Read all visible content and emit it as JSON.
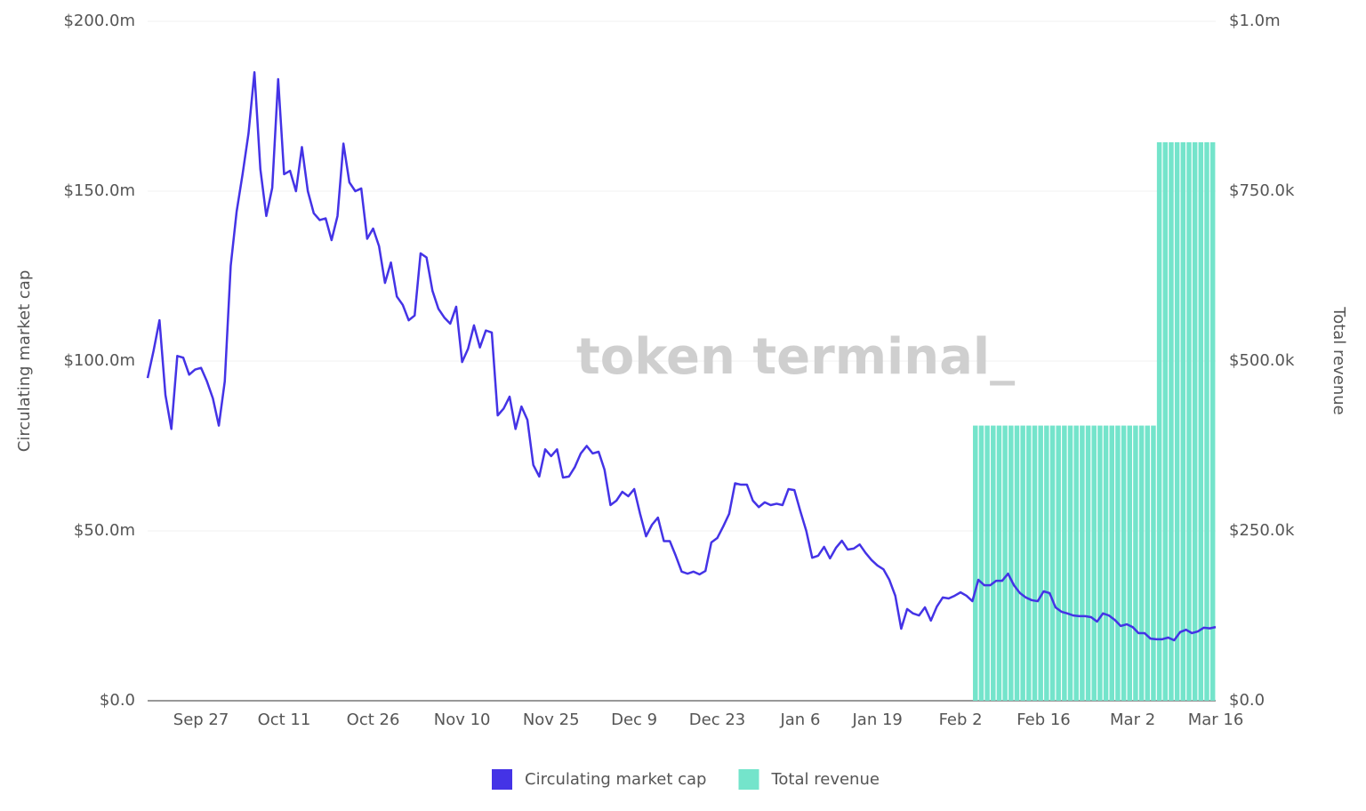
{
  "chart_data": {
    "type": "line-bar",
    "watermark": "token terminal_",
    "ylabel": "Circulating market cap",
    "y2label": "Total revenue",
    "categories": [
      null,
      null,
      null,
      null,
      null,
      null,
      null,
      null,
      null,
      "Sep 27",
      null,
      null,
      null,
      null,
      null,
      null,
      null,
      null,
      null,
      null,
      null,
      null,
      null,
      "Oct 11",
      null,
      null,
      null,
      null,
      null,
      null,
      null,
      null,
      null,
      null,
      null,
      null,
      null,
      null,
      "Oct 26",
      null,
      null,
      null,
      null,
      null,
      null,
      null,
      null,
      null,
      null,
      null,
      null,
      null,
      null,
      "Nov 10",
      null,
      null,
      null,
      null,
      null,
      null,
      null,
      null,
      null,
      null,
      null,
      null,
      null,
      null,
      "Nov 25",
      null,
      null,
      null,
      null,
      null,
      null,
      null,
      null,
      null,
      null,
      null,
      null,
      null,
      "Dec 9",
      null,
      null,
      null,
      null,
      null,
      null,
      null,
      null,
      null,
      null,
      null,
      null,
      null,
      "Dec 23",
      null,
      null,
      null,
      null,
      null,
      null,
      null,
      null,
      null,
      null,
      null,
      null,
      null,
      "Jan 6",
      null,
      null,
      null,
      null,
      null,
      null,
      null,
      null,
      null,
      null,
      null,
      null,
      "Jan 19",
      null,
      null,
      null,
      null,
      null,
      null,
      null,
      null,
      null,
      null,
      null,
      null,
      null,
      "Feb 2",
      null,
      null,
      null,
      null,
      null,
      null,
      null,
      null,
      null,
      null,
      null,
      null,
      null,
      "Feb 16",
      null,
      null,
      null,
      null,
      null,
      null,
      null,
      null,
      null,
      null,
      null,
      null,
      null,
      null,
      "Mar 2",
      null,
      null,
      null,
      null,
      null,
      null,
      null,
      null,
      null,
      null,
      null,
      null,
      null,
      "Mar 16"
    ],
    "series": [
      {
        "name": "Circulating market cap",
        "type": "line",
        "color": "#4433e6",
        "values": [
          95,
          103,
          112,
          90,
          80,
          101.5,
          101,
          96,
          97.5,
          98,
          94,
          89,
          81,
          94,
          128,
          144,
          155,
          167,
          185,
          156.5,
          142.7,
          151,
          183,
          155,
          156,
          150,
          163,
          150,
          143.5,
          141.5,
          142,
          135.6,
          142.7,
          164,
          152.6,
          150,
          150.8,
          136,
          139,
          133.8,
          123,
          129,
          119,
          116.5,
          112,
          113.4,
          131.7,
          130.5,
          120.7,
          115.4,
          112.8,
          111,
          116,
          99.7,
          103.6,
          110.5,
          104,
          109,
          108.4,
          84,
          86,
          89.5,
          80,
          86.6,
          82.7,
          69.4,
          66,
          74,
          72,
          74,
          65.7,
          66,
          68.8,
          72.8,
          75,
          72.8,
          73.3,
          68,
          57.6,
          58.9,
          61.5,
          60.2,
          62.3,
          55,
          48.4,
          51.8,
          53.9,
          47,
          47,
          42.7,
          38,
          37.4,
          38,
          37.2,
          38.2,
          46.6,
          47.9,
          51.3,
          55,
          64,
          63.6,
          63.6,
          58.9,
          57,
          58.4,
          57.6,
          58,
          57.6,
          62.3,
          62,
          55.8,
          50,
          42.1,
          42.7,
          45.3,
          41.9,
          45,
          47.1,
          44.5,
          44.8,
          46,
          43.5,
          41.4,
          39.8,
          38.7,
          35.6,
          30.9,
          21.2,
          27,
          25.7,
          25.1,
          27.5,
          23.6,
          27.7,
          30.4,
          30.1,
          30.9,
          31.9,
          30.9,
          29.3,
          35.6,
          34,
          34,
          35.3,
          35.3,
          37.4,
          34,
          31.7,
          30.4,
          29.6,
          29.3,
          32.2,
          31.7,
          27.5,
          26.2,
          25.7,
          25.1,
          24.9,
          24.9,
          24.6,
          23.3,
          25.7,
          25.1,
          23.8,
          22,
          22.5,
          21.7,
          19.9,
          19.9,
          18.3,
          18.1,
          18.1,
          18.6,
          17.8,
          20.2,
          20.9,
          19.9,
          20.4,
          21.5,
          21.3,
          21.7
        ]
      },
      {
        "name": "Total revenue",
        "type": "bar",
        "axis": "y2",
        "color": "#74e4cb",
        "values": [
          null,
          null,
          null,
          null,
          null,
          null,
          null,
          null,
          null,
          null,
          null,
          null,
          null,
          null,
          null,
          null,
          null,
          null,
          null,
          null,
          null,
          null,
          null,
          null,
          null,
          null,
          null,
          null,
          null,
          null,
          null,
          null,
          null,
          null,
          null,
          null,
          null,
          null,
          null,
          null,
          null,
          null,
          null,
          null,
          null,
          null,
          null,
          null,
          null,
          null,
          null,
          null,
          null,
          null,
          null,
          null,
          null,
          null,
          null,
          null,
          null,
          null,
          null,
          null,
          null,
          null,
          null,
          null,
          null,
          null,
          null,
          null,
          null,
          null,
          null,
          null,
          null,
          null,
          null,
          null,
          null,
          null,
          null,
          null,
          null,
          null,
          null,
          null,
          null,
          null,
          null,
          null,
          null,
          null,
          null,
          null,
          null,
          null,
          null,
          null,
          null,
          null,
          null,
          null,
          null,
          null,
          null,
          null,
          null,
          null,
          null,
          null,
          null,
          null,
          null,
          null,
          null,
          null,
          null,
          null,
          null,
          null,
          null,
          null,
          null,
          null,
          null,
          null,
          null,
          null,
          null,
          null,
          null,
          null,
          null,
          null,
          null,
          null,
          null,
          null,
          405,
          405,
          405,
          405,
          405,
          405,
          405,
          405,
          405,
          405,
          405,
          405,
          405,
          405,
          405,
          405,
          405,
          405,
          405,
          405,
          405,
          405,
          405,
          405,
          405,
          405,
          405,
          405,
          405,
          405,
          405,
          822,
          822,
          822,
          822,
          822,
          822,
          822,
          822,
          822,
          822
        ]
      }
    ],
    "ylim": [
      0,
      200
    ],
    "yticks": [
      {
        "value": 0,
        "label": "$0.0"
      },
      {
        "value": 50,
        "label": "$50.0m"
      },
      {
        "value": 100,
        "label": "$100.0m"
      },
      {
        "value": 150,
        "label": "$150.0m"
      },
      {
        "value": 200,
        "label": "$200.0m"
      }
    ],
    "y2lim": [
      0,
      1000
    ],
    "y2ticks": [
      {
        "value": 0,
        "label": "$0.0"
      },
      {
        "value": 250,
        "label": "$250.0k"
      },
      {
        "value": 500,
        "label": "$500.0k"
      },
      {
        "value": 750,
        "label": "$750.0k"
      },
      {
        "value": 1000,
        "label": "$1.0m"
      }
    ],
    "grid": true
  }
}
